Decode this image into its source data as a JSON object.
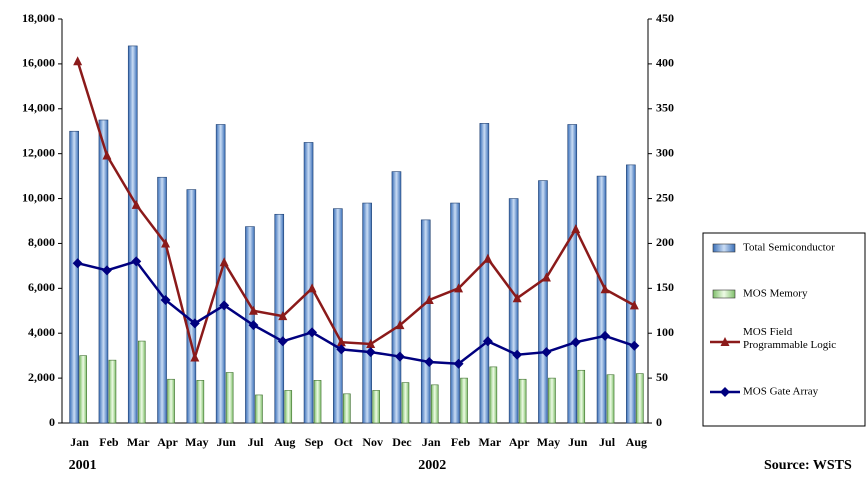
{
  "chart_data": {
    "type": "bar_line",
    "categories": [
      "Jan",
      "Feb",
      "Mar",
      "Apr",
      "May",
      "Jun",
      "Jul",
      "Aug",
      "Sep",
      "Oct",
      "Nov",
      "Dec",
      "Jan",
      "Feb",
      "Mar",
      "Apr",
      "May",
      "Jun",
      "Jul",
      "Aug"
    ],
    "year_labels": [
      "2001",
      "2002"
    ],
    "source": "Source: WSTS",
    "series": [
      {
        "name": "Total Semiconductor",
        "kind": "bar",
        "color": "#6f9fd8",
        "values": [
          13000,
          13500,
          16800,
          10950,
          10400,
          13300,
          8750,
          9300,
          12500,
          9550,
          9800,
          11200,
          9050,
          9800,
          13350,
          10000,
          10800,
          13300,
          11000,
          11500
        ]
      },
      {
        "name": "MOS Memory",
        "kind": "bar",
        "color": "#c8ecb8",
        "values": [
          3000,
          2800,
          3650,
          1950,
          1900,
          2250,
          1250,
          1450,
          1900,
          1300,
          1450,
          1800,
          1700,
          2000,
          2500,
          1950,
          2000,
          2350,
          2150,
          2200
        ]
      },
      {
        "name": "MOS Field Programmable Logic",
        "kind": "line",
        "axis": "y2",
        "marker": "triangle",
        "color": "#8b1a1a",
        "values": [
          403,
          298,
          243,
          200,
          73,
          179,
          125,
          119,
          150,
          90,
          88,
          109,
          137,
          150,
          183,
          139,
          162,
          216,
          149,
          131
        ]
      },
      {
        "name": "MOS Gate Array",
        "kind": "line",
        "axis": "y2",
        "marker": "diamond",
        "color": "#00007f",
        "values": [
          178,
          170,
          180,
          137,
          111,
          131,
          109,
          91,
          101,
          82,
          79,
          74,
          68,
          66,
          91,
          76,
          79,
          90,
          97,
          86
        ]
      }
    ],
    "ylim": [
      0,
      18000
    ],
    "yticks": [
      0,
      {
        "value": 2000,
        "label": "2,000"
      },
      {
        "value": 4000,
        "label": "4,000"
      },
      {
        "value": 6000,
        "label": "6,000"
      },
      {
        "value": 8000,
        "label": "8,000"
      },
      {
        "value": 10000,
        "label": "10,000"
      },
      {
        "value": 12000,
        "label": "12,000"
      },
      {
        "value": 14000,
        "label": "14,000"
      },
      {
        "value": 16000,
        "label": "16,000"
      },
      {
        "value": 18000,
        "label": "18,000"
      }
    ],
    "y2lim": [
      0,
      450
    ],
    "y2ticks": [
      0,
      50,
      100,
      150,
      200,
      250,
      300,
      350,
      400,
      450
    ]
  }
}
